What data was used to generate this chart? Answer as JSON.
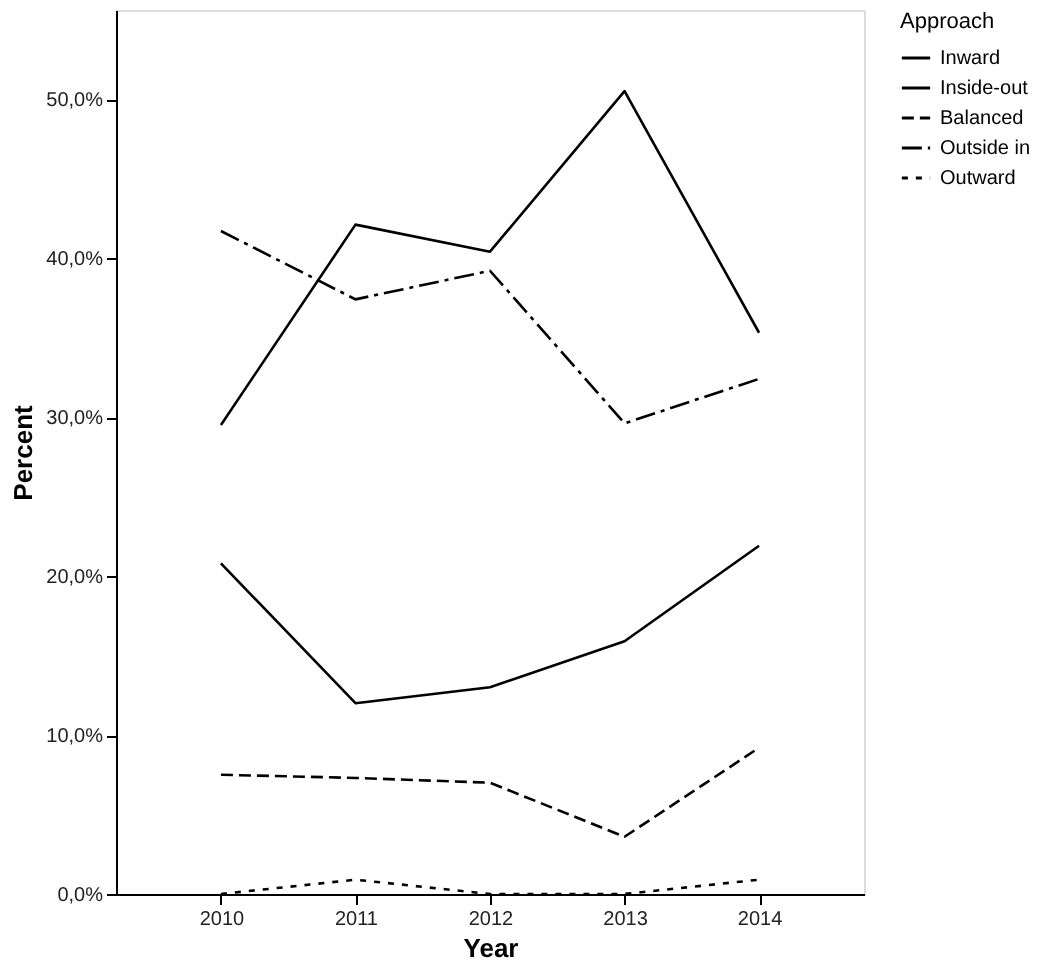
{
  "chart_data": {
    "type": "line",
    "xlabel": "Year",
    "ylabel": "Percent",
    "legend_title": "Approach",
    "legend": "right",
    "grid": false,
    "x": [
      2010,
      2011,
      2012,
      2013,
      2014
    ],
    "xlim": [
      2009.22,
      2014.78
    ],
    "xticks": [
      2010,
      2011,
      2012,
      2013,
      2014
    ],
    "ylim": [
      0,
      55.6
    ],
    "yticks": [
      {
        "value": 0,
        "label": "0,0%"
      },
      {
        "value": 10,
        "label": "10,0%"
      },
      {
        "value": 20,
        "label": "20,0%"
      },
      {
        "value": 30,
        "label": "30,0%"
      },
      {
        "value": 40,
        "label": "40,0%"
      },
      {
        "value": 50,
        "label": "50,0%"
      }
    ],
    "series": [
      {
        "name": "Inward",
        "color": "#000000",
        "line_style": "solid",
        "values": [
          29.5,
          42.1,
          40.4,
          50.5,
          35.3
        ]
      },
      {
        "name": "Inside-out",
        "color": "#000000",
        "line_style": "solid",
        "values": [
          20.8,
          12.0,
          13.0,
          15.9,
          21.9
        ]
      },
      {
        "name": "Balanced",
        "color": "#000000",
        "line_style": "dashed",
        "values": [
          7.5,
          7.3,
          7.0,
          3.6,
          9.2
        ]
      },
      {
        "name": "Outside in",
        "color": "#000000",
        "line_style": "dashdot",
        "values": [
          41.7,
          37.4,
          39.2,
          29.6,
          32.4
        ]
      },
      {
        "name": "Outward",
        "color": "#000000",
        "line_style": "dotted",
        "values": [
          0,
          0.9,
          0,
          0,
          0.9
        ]
      }
    ]
  }
}
